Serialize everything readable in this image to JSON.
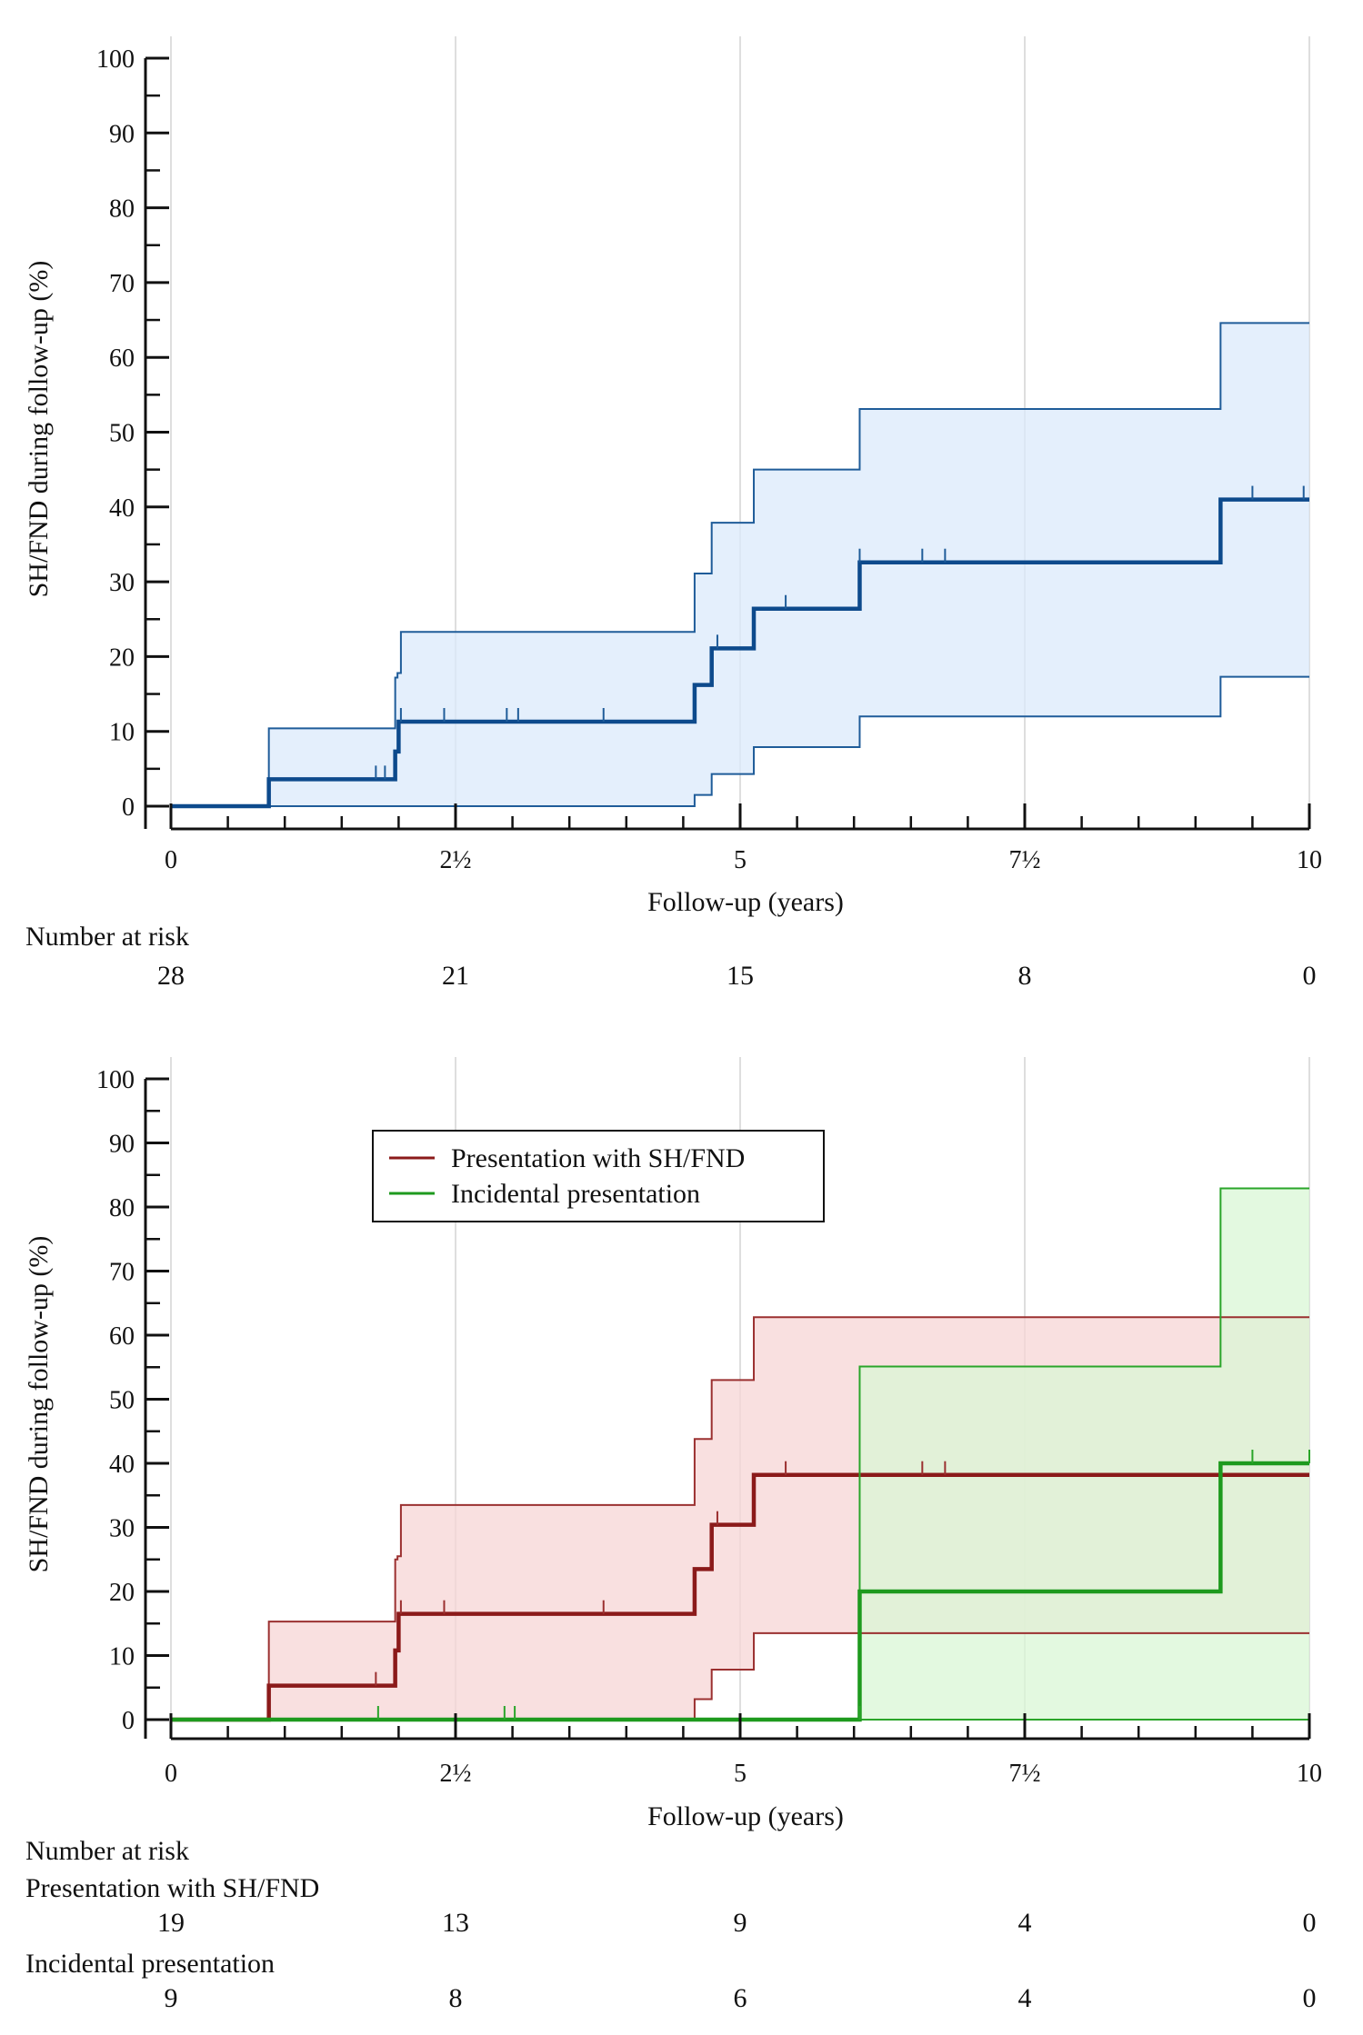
{
  "chart_data": [
    {
      "type": "line",
      "title": "",
      "xlabel": "Follow-up (years)",
      "ylabel": "SH/FND during follow-up (%)",
      "xlim": [
        0,
        10
      ],
      "ylim": [
        0,
        100
      ],
      "x_tick_labels": [
        "0",
        "2½",
        "5",
        "7½",
        "10"
      ],
      "y_tick_labels": [
        "0",
        "10",
        "20",
        "30",
        "40",
        "50",
        "60",
        "70",
        "80",
        "90",
        "100"
      ],
      "grid": true,
      "series": [
        {
          "color": "#0d4a8c",
          "ci_color": "#1f5c99",
          "fill": "#dbeafb",
          "step_x": [
            0,
            0.86,
            1.97,
            2.0,
            4.6,
            4.75,
            5.12,
            6.05,
            9.22,
            10
          ],
          "step_y": [
            0,
            3.6,
            7.3,
            11.3,
            16.2,
            21.1,
            26.4,
            32.6,
            41.0,
            41.0
          ],
          "upper_x": [
            0,
            0.86,
            1.97,
            1.99,
            2.02,
            4.6,
            4.75,
            5.12,
            6.05,
            9.22,
            10
          ],
          "upper_y": [
            0,
            10.4,
            17.2,
            17.8,
            23.3,
            31.1,
            37.9,
            45.0,
            53.1,
            64.6,
            64.6
          ],
          "lower_x": [
            0,
            4.6,
            4.75,
            5.12,
            6.05,
            9.22,
            10
          ],
          "lower_y": [
            0,
            1.5,
            4.3,
            7.9,
            12.0,
            17.3,
            17.3
          ],
          "censor_x": [
            1.8,
            1.88,
            2.02,
            2.4,
            2.95,
            3.05,
            3.8,
            4.8,
            5.4,
            6.05,
            6.6,
            6.8,
            9.5,
            9.95
          ],
          "censor_y": [
            3.6,
            3.6,
            11.3,
            11.3,
            11.3,
            11.3,
            11.3,
            21.1,
            26.4,
            32.6,
            32.6,
            32.6,
            41.0,
            41.0
          ]
        }
      ],
      "risk_table": {
        "title": "Number at risk",
        "rows": [
          {
            "label": "",
            "values": [
              "28",
              "21",
              "15",
              "8",
              "0"
            ]
          }
        ]
      }
    },
    {
      "type": "line",
      "title": "",
      "xlabel": "Follow-up (years)",
      "ylabel": "SH/FND during follow-up (%)",
      "xlim": [
        0,
        10
      ],
      "ylim": [
        0,
        100
      ],
      "x_tick_labels": [
        "0",
        "2½",
        "5",
        "7½",
        "10"
      ],
      "y_tick_labels": [
        "0",
        "10",
        "20",
        "30",
        "40",
        "50",
        "60",
        "70",
        "80",
        "90",
        "100"
      ],
      "grid": true,
      "legend": {
        "position": "top-center",
        "entries": [
          {
            "label": "Presentation with SH/FND",
            "color": "#8b1a1a"
          },
          {
            "label": "Incidental presentation",
            "color": "#1e9a1e"
          }
        ]
      },
      "series": [
        {
          "name": "Presentation with SH/FND",
          "color": "#8b1a1a",
          "ci_color": "#9b3030",
          "fill": "#f7d6d6",
          "step_x": [
            0,
            0.86,
            1.97,
            2.0,
            4.6,
            4.75,
            5.12,
            6.05,
            10
          ],
          "step_y": [
            0,
            5.3,
            10.8,
            16.5,
            23.5,
            30.4,
            38.2,
            38.2,
            38.2
          ],
          "upper_x": [
            0,
            0.86,
            1.97,
            1.99,
            2.02,
            4.6,
            4.75,
            5.12,
            10
          ],
          "upper_y": [
            0,
            15.3,
            25.0,
            25.5,
            33.5,
            43.8,
            53.0,
            62.8,
            62.8
          ],
          "lower_x": [
            0,
            4.6,
            4.75,
            5.12,
            10
          ],
          "lower_y": [
            0,
            3.2,
            7.8,
            13.5,
            13.5
          ],
          "censor_x": [
            1.8,
            2.02,
            2.4,
            3.8,
            4.8,
            5.4,
            6.6,
            6.8
          ],
          "censor_y": [
            5.3,
            16.5,
            16.5,
            16.5,
            30.4,
            38.2,
            38.2,
            38.2
          ]
        },
        {
          "name": "Incidental presentation",
          "color": "#1e9a1e",
          "ci_color": "#2aa52a",
          "fill": "#d9f7d6",
          "step_x": [
            0,
            6.05,
            9.22,
            10
          ],
          "step_y": [
            0,
            20.0,
            40.0,
            40.0
          ],
          "upper_x": [
            0,
            6.05,
            9.22,
            10
          ],
          "upper_y": [
            0,
            55.1,
            82.9,
            82.9
          ],
          "lower_x": [
            0,
            10
          ],
          "lower_y": [
            0,
            0
          ],
          "censor_x": [
            1.82,
            2.93,
            3.02,
            6.05,
            9.5,
            10
          ],
          "censor_y": [
            0,
            0,
            0,
            0,
            40.0,
            40.0
          ]
        }
      ],
      "risk_table": {
        "title": "Number at risk",
        "rows": [
          {
            "label": "Presentation with SH/FND",
            "values": [
              "19",
              "13",
              "9",
              "4",
              "0"
            ]
          },
          {
            "label": "Incidental presentation",
            "values": [
              "9",
              "8",
              "6",
              "4",
              "0"
            ]
          }
        ]
      }
    }
  ]
}
